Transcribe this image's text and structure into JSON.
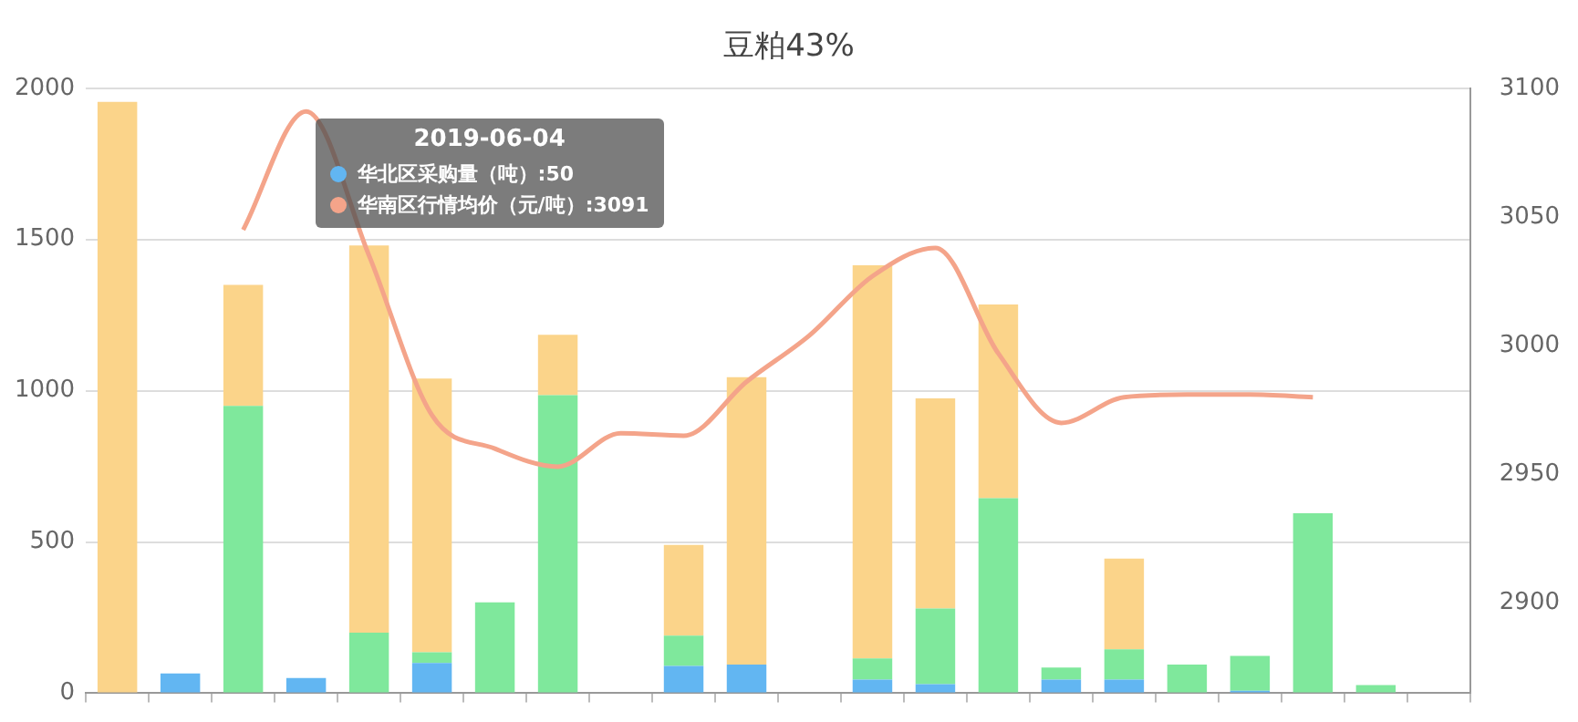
{
  "chart_data": {
    "type": "bar",
    "title": "豆粕43%",
    "stacked": true,
    "grid": "y",
    "legend": false,
    "marker": "none",
    "categories": [
      null,
      null,
      null,
      null,
      null,
      null,
      null,
      null,
      null,
      null,
      null,
      null,
      null,
      null,
      null,
      null,
      null,
      null,
      null,
      null,
      null,
      null
    ],
    "series": [
      {
        "color": "#62b6f2",
        "values": [
          null,
          65,
          null,
          50,
          null,
          100,
          null,
          null,
          null,
          90,
          95,
          null,
          45,
          30,
          null,
          45,
          45,
          null,
          8,
          null,
          null,
          null
        ]
      },
      {
        "color": "#7fe89c",
        "values": [
          null,
          null,
          950,
          null,
          200,
          35,
          300,
          985,
          null,
          100,
          null,
          null,
          70,
          250,
          645,
          40,
          100,
          95,
          115,
          595,
          27,
          null
        ]
      },
      {
        "color": "#fbd48a",
        "values": [
          1955,
          null,
          400,
          null,
          1280,
          905,
          null,
          200,
          null,
          300,
          950,
          null,
          1300,
          695,
          640,
          null,
          300,
          null,
          null,
          null,
          null,
          null
        ]
      },
      {
        "type": "line",
        "axis": "y2",
        "color": "#f4a48a",
        "values": [
          null,
          null,
          3045,
          3091,
          3035,
          2973,
          2960,
          2953,
          2966,
          2965,
          2986,
          3004,
          3027,
          3038,
          2997,
          2970,
          2980,
          2981,
          2981,
          2980,
          null,
          null
        ]
      }
    ],
    "ylim": [
      0,
      2000
    ],
    "yticks": [
      0,
      500,
      1000,
      1500,
      2000
    ],
    "y2lim": [
      2865,
      3100
    ],
    "y2ticks": [
      2900,
      2950,
      3000,
      3050,
      3100
    ],
    "tick_labels": "y",
    "annotations": [
      "2019-06-04",
      "华北区采购量（吨）:50",
      "华南区行情均价（元/吨）:3091"
    ]
  }
}
